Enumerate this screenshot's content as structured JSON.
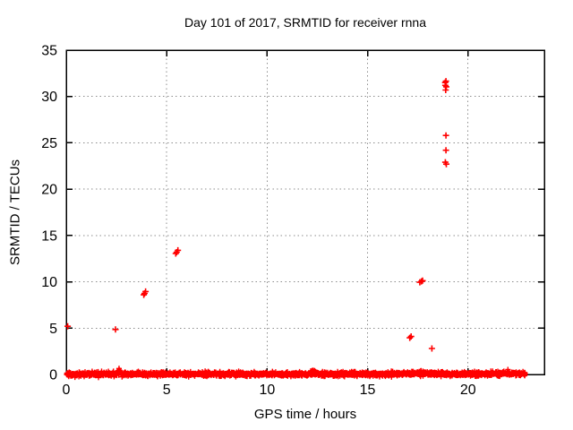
{
  "figure": {
    "background_color": "#ffffff",
    "text_color": "#000000",
    "border_color": "#000000",
    "grid_color": "#8c8c8c"
  },
  "chart_data": {
    "type": "scatter",
    "title": "Day 101 of 2017, SRMTID for receiver rnna",
    "xlabel": "GPS time / hours",
    "ylabel": "SRMTID / TECUs",
    "xlim": [
      0,
      23.8
    ],
    "ylim": [
      0,
      35
    ],
    "xticks": [
      0,
      5,
      10,
      15,
      20
    ],
    "yticks": [
      0,
      5,
      10,
      15,
      20,
      25,
      30,
      35
    ],
    "grid": true,
    "grid_style": "dotted",
    "legend_position": "none",
    "marker": "plus",
    "marker_color": "#ff0000",
    "outlier_points": [
      [
        0.07,
        5.2
      ],
      [
        2.45,
        4.85
      ],
      [
        3.86,
        8.6
      ],
      [
        3.9,
        8.75
      ],
      [
        3.95,
        8.95
      ],
      [
        5.45,
        13.05
      ],
      [
        5.5,
        13.2
      ],
      [
        5.56,
        13.4
      ],
      [
        17.1,
        3.95
      ],
      [
        17.17,
        4.1
      ],
      [
        17.6,
        9.95
      ],
      [
        17.68,
        10.05
      ],
      [
        17.74,
        10.12
      ],
      [
        18.2,
        2.8
      ],
      [
        18.86,
        31.5
      ],
      [
        18.9,
        31.65
      ],
      [
        18.87,
        31.2
      ],
      [
        18.92,
        31.05
      ],
      [
        18.89,
        30.7
      ],
      [
        18.9,
        25.8
      ],
      [
        18.9,
        24.2
      ],
      [
        18.87,
        22.9
      ],
      [
        18.92,
        22.7
      ]
    ],
    "baseline_band": {
      "description": "dense band of plus markers hugging zero for the whole day",
      "x_min": 0.02,
      "x_max": 22.85,
      "y_min": -0.35,
      "y_max": 0.45,
      "count": 2800,
      "bumps": [
        {
          "x": 2.62,
          "peak": 0.85,
          "width": 0.12
        },
        {
          "x": 12.3,
          "peak": 0.45,
          "width": 0.25
        },
        {
          "x": 17.5,
          "peak": 0.2,
          "width": 2.0
        },
        {
          "x": 21.9,
          "peak": 0.18,
          "width": 0.9
        }
      ]
    }
  }
}
